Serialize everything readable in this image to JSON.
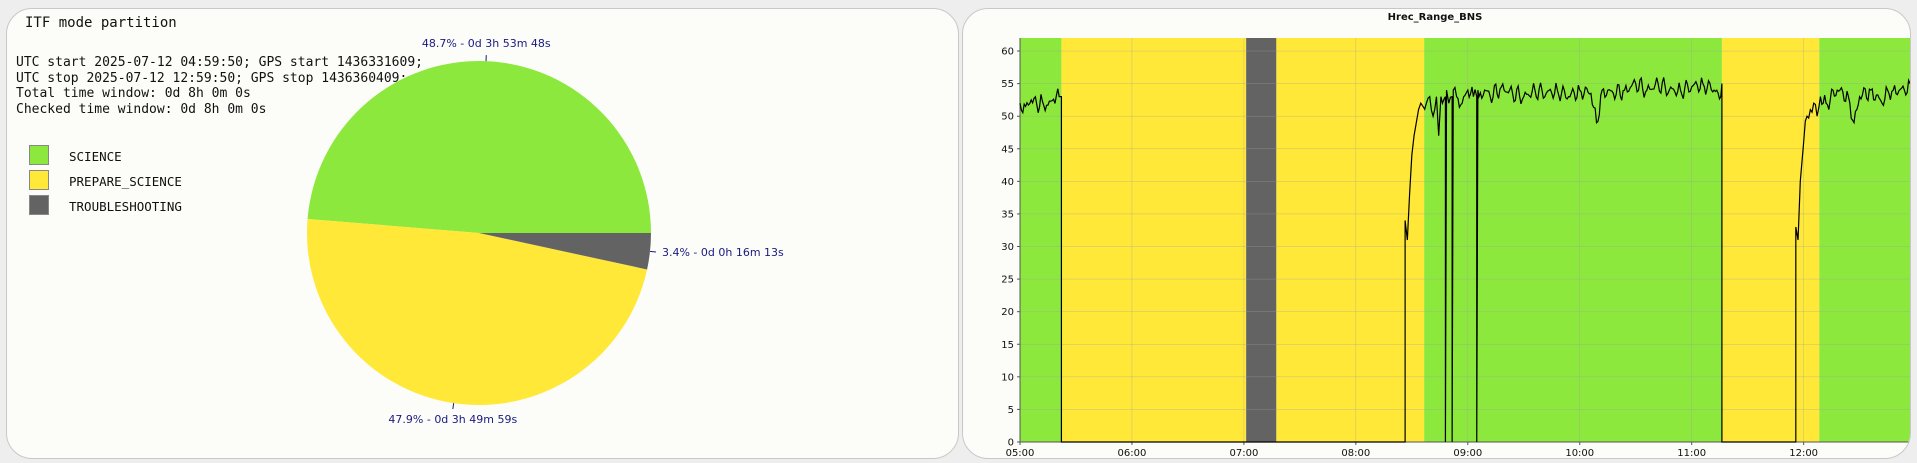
{
  "colors": {
    "science": "#8ce83c",
    "prepare_science": "#ffe838",
    "troubleshooting": "#636363",
    "pie_label": "#1a1a80",
    "grid": "#a0a0a0",
    "line": "#000000"
  },
  "left": {
    "title": "ITF mode partition",
    "info": [
      "UTC start 2025-07-12 04:59:50; GPS start 1436331609;",
      "UTC stop 2025-07-12 12:59:50; GPS stop 1436360409;",
      "Total time window: 0d 8h 0m 0s",
      "Checked time window: 0d 8h 0m 0s"
    ],
    "legend": [
      {
        "label": "SCIENCE",
        "color": "#8ce83c"
      },
      {
        "label": "PREPARE_SCIENCE",
        "color": "#ffe838"
      },
      {
        "label": "TROUBLESHOOTING",
        "color": "#636363"
      }
    ]
  },
  "chart_data": [
    {
      "type": "pie",
      "title": "",
      "slices": [
        {
          "label": "SCIENCE",
          "value": 48.7,
          "text": "48.7% - 0d 3h 53m 48s",
          "color": "#8ce83c"
        },
        {
          "label": "PREPARE_SCIENCE",
          "value": 47.9,
          "text": "47.9% - 0d 3h 49m 59s",
          "color": "#ffe838"
        },
        {
          "label": "TROUBLESHOOTING",
          "value": 3.4,
          "text": "3.4% - 0d 0h 16m 13s",
          "color": "#636363"
        }
      ]
    },
    {
      "type": "line",
      "title": "Hrec_Range_BNS",
      "xlabel": "",
      "ylabel": "",
      "xlim": [
        5.0,
        12.95
      ],
      "ylim": [
        0,
        62
      ],
      "x_ticks": [
        "05:00",
        "06:00",
        "07:00",
        "08:00",
        "09:00",
        "10:00",
        "11:00",
        "12:00"
      ],
      "x_tick_values": [
        5,
        6,
        7,
        8,
        9,
        10,
        11,
        12
      ],
      "y_ticks": [
        0,
        5,
        10,
        15,
        20,
        25,
        30,
        35,
        40,
        45,
        50,
        55,
        60
      ],
      "grid": true,
      "state_bands": [
        {
          "state": "SCIENCE",
          "start": 5.0,
          "end": 5.37
        },
        {
          "state": "PREPARE_SCIENCE",
          "start": 5.37,
          "end": 7.02
        },
        {
          "state": "TROUBLESHOOTING",
          "start": 7.02,
          "end": 7.29
        },
        {
          "state": "PREPARE_SCIENCE",
          "start": 7.29,
          "end": 8.61
        },
        {
          "state": "SCIENCE",
          "start": 8.61,
          "end": 11.27
        },
        {
          "state": "PREPARE_SCIENCE",
          "start": 11.27,
          "end": 12.14
        },
        {
          "state": "SCIENCE",
          "start": 12.14,
          "end": 12.95
        }
      ],
      "series": [
        {
          "name": "",
          "x": [
            5.0,
            5.05,
            5.1,
            5.15,
            5.2,
            5.25,
            5.3,
            5.35,
            5.37,
            5.37,
            8.44,
            8.44,
            8.46,
            8.48,
            8.5,
            8.52,
            8.54,
            8.56,
            8.58,
            8.6,
            8.63,
            8.66,
            8.69,
            8.72,
            8.74,
            8.76,
            8.8,
            8.8,
            8.81,
            8.83,
            8.86,
            8.86,
            8.87,
            8.9,
            8.95,
            9.0,
            9.05,
            9.08,
            9.08,
            9.09,
            9.1,
            9.15,
            9.2,
            9.3,
            9.4,
            9.5,
            9.6,
            9.7,
            9.8,
            9.9,
            10.0,
            10.1,
            10.15,
            10.2,
            10.3,
            10.4,
            10.5,
            10.6,
            10.7,
            10.8,
            10.9,
            11.0,
            11.1,
            11.2,
            11.26,
            11.27,
            11.27,
            11.93,
            11.93,
            11.95,
            11.97,
            12.0,
            12.03,
            12.06,
            12.09,
            12.12,
            12.15,
            12.2,
            12.3,
            12.4,
            12.45,
            12.5,
            12.6,
            12.7,
            12.75,
            12.8,
            12.9,
            12.95
          ],
          "y": [
            52,
            51.5,
            52.5,
            51.8,
            52.3,
            51.7,
            52.6,
            53,
            53,
            0,
            0,
            34,
            31,
            38,
            44,
            47,
            49,
            51,
            52,
            51.5,
            52,
            53,
            50,
            53,
            47,
            53,
            53,
            0,
            54,
            52,
            53,
            0,
            54,
            53,
            52,
            54,
            53,
            53,
            0,
            54,
            53,
            54,
            53,
            54.5,
            53.5,
            53,
            54,
            53.5,
            54,
            53,
            54,
            53.5,
            49,
            54,
            53.5,
            54,
            55,
            54,
            55,
            54,
            54,
            54.5,
            55,
            54,
            53,
            55,
            0,
            0,
            33,
            31,
            40,
            46,
            50,
            51,
            52,
            50,
            53,
            52,
            54,
            53,
            49,
            53,
            54,
            52,
            54,
            54,
            54,
            55
          ]
        }
      ]
    }
  ]
}
